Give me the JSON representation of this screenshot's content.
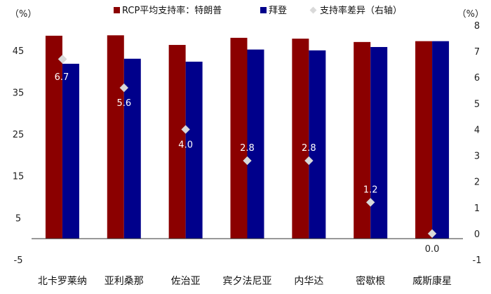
{
  "chart_data": {
    "type": "bar",
    "categories": [
      "北卡罗莱纳",
      "亚利桑那",
      "佐治亚",
      "宾夕法尼亚",
      "内华达",
      "密歇根",
      "威斯康星"
    ],
    "series": [
      {
        "name": "RCP平均支持率：特朗普",
        "values": [
          48.5,
          48.6,
          46.3,
          48.0,
          47.8,
          47.0,
          47.2
        ],
        "color": "#8B0000",
        "marker": "square",
        "axis": "left"
      },
      {
        "name": "拜登",
        "values": [
          41.8,
          43.0,
          42.3,
          45.2,
          45.0,
          45.8,
          47.2
        ],
        "color": "#00008B",
        "marker": "square",
        "axis": "left"
      },
      {
        "name": "支持率差异（右轴）",
        "values": [
          6.7,
          5.6,
          4.0,
          2.8,
          2.8,
          1.2,
          0.0
        ],
        "labels": [
          "6.7",
          "5.6",
          "4.0",
          "2.8",
          "2.8",
          "1.2",
          "0.0"
        ],
        "color": "#d9d9d9",
        "marker": "diamond",
        "axis": "right"
      }
    ],
    "y_left": {
      "unit": "（%）",
      "ticks": [
        "-5",
        "5",
        "15",
        "25",
        "35",
        "45"
      ],
      "ylim": [
        -5,
        51
      ]
    },
    "y_right": {
      "unit": "（%）",
      "ticks": [
        "-1",
        "0",
        "1",
        "2",
        "3",
        "4",
        "5",
        "6",
        "7",
        "8"
      ],
      "ylim": [
        -1,
        8
      ]
    },
    "legend_position": "top",
    "grid": false
  }
}
